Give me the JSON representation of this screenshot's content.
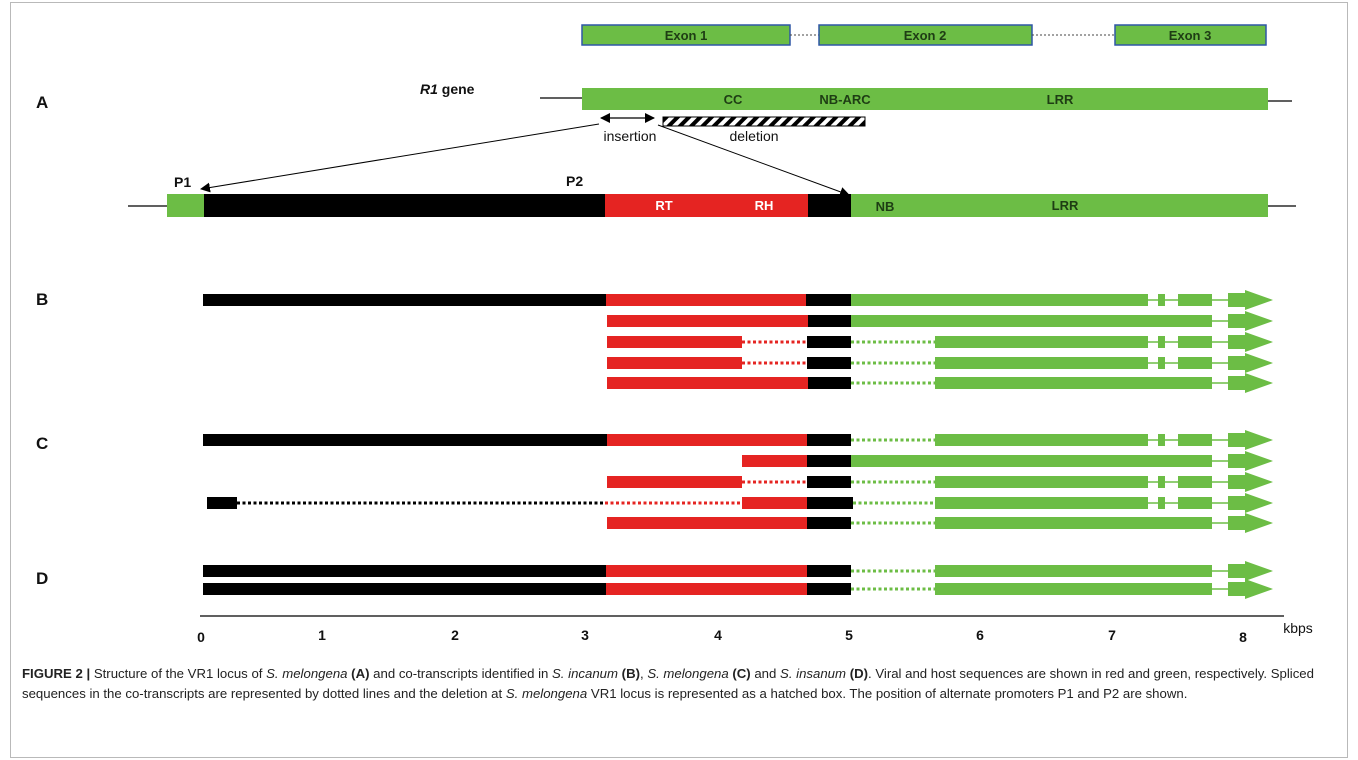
{
  "colors": {
    "viral": "#e52422",
    "host": "#6cbd45",
    "retro": "#000000",
    "exon_border": "#2e57a6",
    "frame": "#b9b9b9"
  },
  "exons": [
    "Exon 1",
    "Exon 2",
    "Exon 3"
  ],
  "panels": {
    "A": "A",
    "B": "B",
    "C": "C",
    "D": "D"
  },
  "gene": {
    "name": "R1",
    "suffix": " gene"
  },
  "domains": {
    "cc": "CC",
    "nbarc": "NB-ARC",
    "lrr": "LRR"
  },
  "annotations": {
    "insertion": "insertion",
    "deletion": "deletion"
  },
  "promoters": {
    "p1": "P1",
    "p2": "P2"
  },
  "locus_domains": {
    "rt": "RT",
    "rh": "RH",
    "nb": "NB",
    "lrr": "LRR"
  },
  "axis": {
    "ticks": [
      "0",
      "1",
      "2",
      "3",
      "4",
      "5",
      "6",
      "7",
      "8"
    ],
    "unit": "kbps"
  },
  "caption": {
    "heading": "FIGURE 2 |",
    "segments": [
      {
        "t": " Structure of the VR1 locus of ",
        "s": ""
      },
      {
        "t": "S. melongena",
        "s": "i"
      },
      {
        "t": " ",
        "s": ""
      },
      {
        "t": "(A)",
        "s": "b"
      },
      {
        "t": " and co-transcripts identified in ",
        "s": ""
      },
      {
        "t": "S. incanum",
        "s": "i"
      },
      {
        "t": " ",
        "s": ""
      },
      {
        "t": "(B)",
        "s": "b"
      },
      {
        "t": ", ",
        "s": ""
      },
      {
        "t": "S. melongena",
        "s": "i"
      },
      {
        "t": " ",
        "s": ""
      },
      {
        "t": "(C)",
        "s": "b"
      },
      {
        "t": " and ",
        "s": ""
      },
      {
        "t": "S. insanum",
        "s": "i"
      },
      {
        "t": " ",
        "s": ""
      },
      {
        "t": "(D)",
        "s": "b"
      },
      {
        "t": ". Viral and host sequences are shown in red and green, respectively. Spliced sequences in the co-transcripts are represented by dotted lines and the deletion at ",
        "s": ""
      },
      {
        "t": "S. melongena",
        "s": "i"
      },
      {
        "t": " VR1 locus is represented as a hatched box. The position of alternate promoters P1 and P2 are shown.",
        "s": ""
      }
    ]
  }
}
